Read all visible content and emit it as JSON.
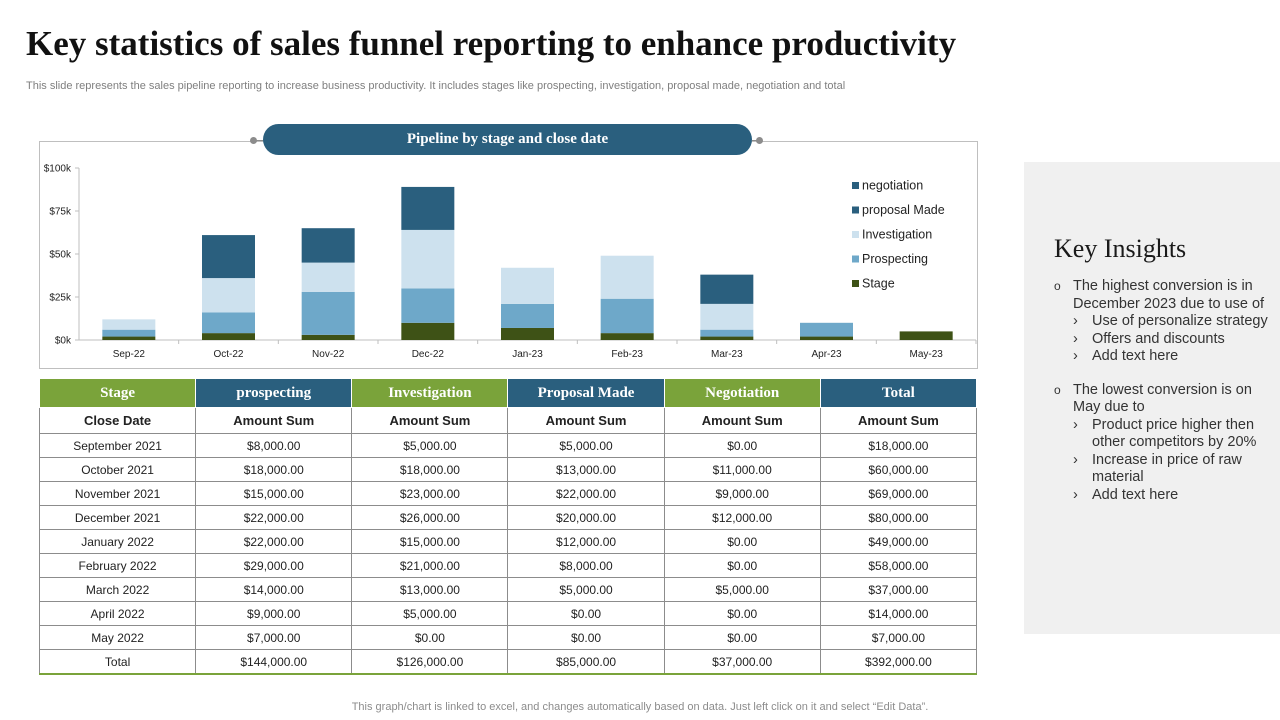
{
  "slide": {
    "title": "Key statistics of sales funnel reporting to enhance productivity",
    "subtitle": "This slide represents the sales pipeline reporting to increase business productivity. It includes stages like prospecting, investigation, proposal made, negotiation and total",
    "footer": "This graph/chart is linked to excel,  and changes automatically based on data. Just left click on it and select “Edit Data”."
  },
  "chart_data": {
    "type": "bar",
    "stacked": true,
    "title": "Pipeline by stage and close date",
    "categories": [
      "Sep-22",
      "Oct-22",
      "Nov-22",
      "Dec-22",
      "Jan-23",
      "Feb-23",
      "Mar-23",
      "Apr-23",
      "May-23"
    ],
    "series": [
      {
        "name": "Stage",
        "color": "#3e5216",
        "values": [
          2000,
          4000,
          3000,
          10000,
          7000,
          4000,
          2000,
          2000,
          5000
        ]
      },
      {
        "name": "Prospecting",
        "color": "#6ea8c9",
        "values": [
          4000,
          12000,
          25000,
          20000,
          14000,
          20000,
          4000,
          8000,
          0
        ]
      },
      {
        "name": "Investigation",
        "color": "#cde1ee",
        "values": [
          6000,
          20000,
          17000,
          34000,
          21000,
          25000,
          15000,
          0,
          0
        ]
      },
      {
        "name": "proposal Made",
        "color": "#2a5f7e",
        "values": [
          0,
          25000,
          0,
          0,
          0,
          0,
          0,
          0,
          0
        ]
      },
      {
        "name": "negotiation",
        "color": "#2a5f7e",
        "values": [
          0,
          0,
          20000,
          25000,
          0,
          0,
          17000,
          0,
          0
        ]
      }
    ],
    "legend_order": [
      "negotiation",
      "proposal Made",
      "Investigation",
      "Prospecting",
      "Stage"
    ],
    "yticks": [
      "$0k",
      "$25k",
      "$50k",
      "$75k",
      "$100k"
    ],
    "ylim": [
      0,
      100000
    ],
    "legend_position": "right"
  },
  "table": {
    "headers": [
      {
        "label": "Stage",
        "color": "green"
      },
      {
        "label": "prospecting",
        "color": "blue"
      },
      {
        "label": "Investigation",
        "color": "green"
      },
      {
        "label": "Proposal Made",
        "color": "blue"
      },
      {
        "label": "Negotiation",
        "color": "green"
      },
      {
        "label": "Total",
        "color": "blue"
      }
    ],
    "subheaders": [
      "Close Date",
      "Amount Sum",
      "Amount Sum",
      "Amount Sum",
      "Amount Sum",
      "Amount Sum"
    ],
    "rows": [
      [
        "September 2021",
        "$8,000.00",
        "$5,000.00",
        "$5,000.00",
        "$0.00",
        "$18,000.00"
      ],
      [
        "October 2021",
        "$18,000.00",
        "$18,000.00",
        "$13,000.00",
        "$11,000.00",
        "$60,000.00"
      ],
      [
        "November 2021",
        "$15,000.00",
        "$23,000.00",
        "$22,000.00",
        "$9,000.00",
        "$69,000.00"
      ],
      [
        "December 2021",
        "$22,000.00",
        "$26,000.00",
        "$20,000.00",
        "$12,000.00",
        "$80,000.00"
      ],
      [
        "January 2022",
        "$22,000.00",
        "$15,000.00",
        "$12,000.00",
        "$0.00",
        "$49,000.00"
      ],
      [
        "February 2022",
        "$29,000.00",
        "$21,000.00",
        "$8,000.00",
        "$0.00",
        "$58,000.00"
      ],
      [
        "March 2022",
        "$14,000.00",
        "$13,000.00",
        "$5,000.00",
        "$5,000.00",
        "$37,000.00"
      ],
      [
        "April 2022",
        "$9,000.00",
        "$5,000.00",
        "$0.00",
        "$0.00",
        "$14,000.00"
      ],
      [
        "May 2022",
        "$7,000.00",
        "$0.00",
        "$0.00",
        "$0.00",
        "$7,000.00"
      ],
      [
        "Total",
        "$144,000.00",
        "$126,000.00",
        "$85,000.00",
        "$37,000.00",
        "$392,000.00"
      ]
    ]
  },
  "insights": {
    "title": "Key Insights",
    "bullet_glyph": "o",
    "arrow_glyph": "›",
    "items": [
      {
        "text": "The highest conversion is in December 2023 due to use of",
        "subs": [
          "Use of personalize strategy",
          "Offers and discounts",
          "Add text here"
        ]
      },
      {
        "text": "The lowest conversion is on May due to",
        "subs": [
          "Product price higher then other competitors by 20%",
          "Increase in price of raw material",
          "Add text here"
        ]
      }
    ]
  }
}
